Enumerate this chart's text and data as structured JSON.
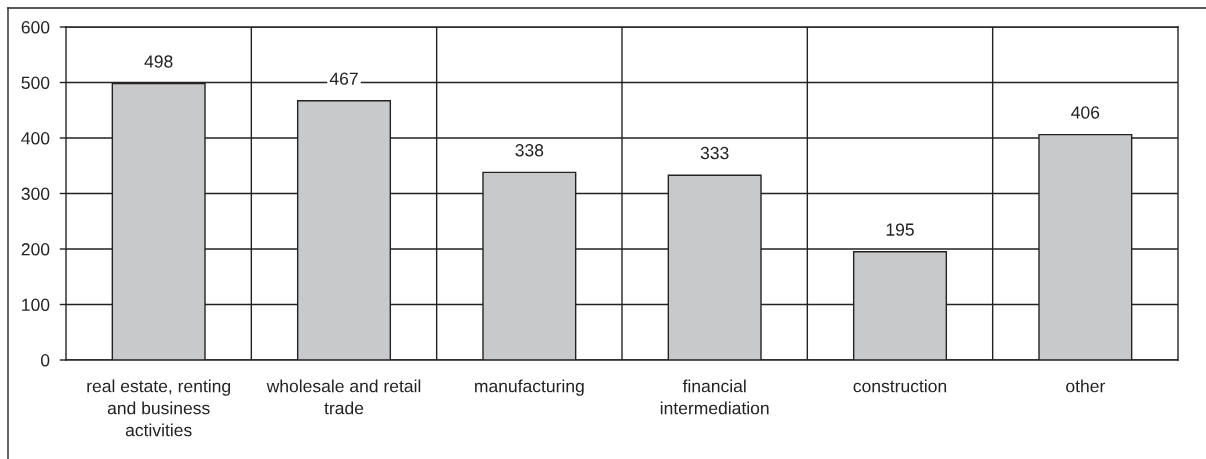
{
  "chart_data": {
    "type": "bar",
    "categories": [
      "real estate, renting and business activities",
      "wholesale and retail trade",
      "manufacturing",
      "financial intermediation",
      "construction",
      "other"
    ],
    "values": [
      498,
      467,
      338,
      333,
      195,
      406
    ],
    "color": "#c8c9cb",
    "ylim": [
      0,
      600
    ],
    "yticks": [
      0,
      100,
      200,
      300,
      400,
      500,
      600
    ],
    "grid": true,
    "data_labels": true
  }
}
